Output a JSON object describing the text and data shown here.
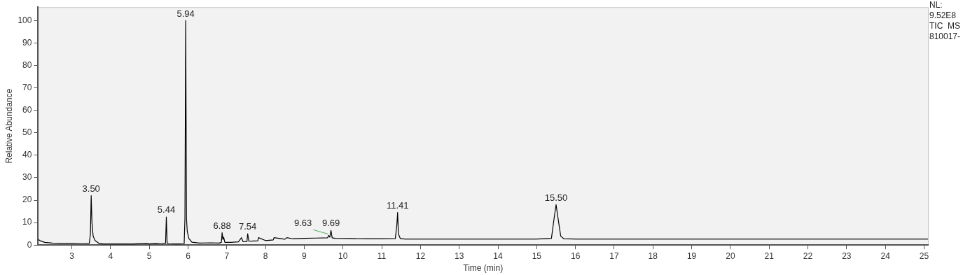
{
  "chart_data": {
    "type": "line",
    "xlabel": "Time (min)",
    "ylabel": "Relative Abundance",
    "xlim": [
      2.13,
      25.1
    ],
    "ylim": [
      0,
      106
    ],
    "xticks": [
      3,
      4,
      5,
      6,
      7,
      8,
      9,
      10,
      11,
      12,
      13,
      14,
      15,
      16,
      17,
      18,
      19,
      20,
      21,
      22,
      23,
      24,
      25
    ],
    "yticks": [
      0,
      10,
      20,
      30,
      40,
      50,
      60,
      70,
      80,
      90,
      100
    ],
    "grid": false,
    "legend": false,
    "marker": "none",
    "line_style": "solid",
    "series": [
      {
        "color": "#000000",
        "x": [
          2.13,
          2.2,
          2.3,
          2.5,
          2.7,
          3.0,
          3.3,
          3.45,
          3.48,
          3.5,
          3.52,
          3.55,
          3.6,
          3.7,
          3.8,
          4.2,
          4.6,
          4.92,
          5.0,
          5.15,
          5.3,
          5.42,
          5.44,
          5.46,
          5.5,
          5.7,
          5.9,
          5.92,
          5.94,
          5.96,
          5.98,
          6.02,
          6.1,
          6.3,
          6.58,
          6.8,
          6.86,
          6.88,
          6.9,
          6.92,
          6.95,
          7.1,
          7.3,
          7.38,
          7.42,
          7.52,
          7.54,
          7.57,
          7.7,
          7.8,
          7.82,
          8.0,
          8.2,
          8.22,
          8.5,
          8.55,
          8.7,
          9.0,
          9.3,
          9.6,
          9.63,
          9.66,
          9.69,
          9.72,
          9.8,
          10.2,
          10.6,
          11.0,
          11.35,
          11.39,
          11.41,
          11.43,
          11.48,
          11.6,
          12.0,
          12.5,
          13.0,
          13.5,
          14.0,
          14.5,
          15.0,
          15.38,
          15.45,
          15.5,
          15.55,
          15.62,
          15.7,
          16.0,
          17.0,
          18.0,
          19.0,
          20.0,
          21.0,
          22.0,
          23.0,
          24.0,
          25.1
        ],
        "values": [
          2.5,
          1.8,
          1.2,
          0.9,
          0.8,
          0.8,
          0.6,
          0.7,
          5,
          22,
          10,
          4,
          2,
          0.8,
          0.5,
          0.5,
          0.5,
          0.8,
          0.5,
          0.7,
          0.6,
          0.8,
          12.5,
          0.8,
          0.6,
          0.5,
          0.6,
          12,
          100,
          12,
          6,
          3,
          1.3,
          0.9,
          1.0,
          0.9,
          1.2,
          5.5,
          2.5,
          3.5,
          1.2,
          1.2,
          1.4,
          3.3,
          1.5,
          1.6,
          5,
          1.7,
          1.8,
          1.9,
          3.3,
          2.0,
          2.3,
          3.3,
          2.6,
          3.3,
          2.8,
          3.0,
          3.1,
          3.2,
          4.3,
          3.5,
          6.5,
          3.2,
          3.0,
          2.9,
          2.8,
          2.8,
          2.9,
          9,
          14.5,
          5,
          2.9,
          2.7,
          2.7,
          2.7,
          2.7,
          2.7,
          2.7,
          2.7,
          2.7,
          3.0,
          12,
          18,
          12,
          4,
          2.8,
          2.7,
          2.7,
          2.7,
          2.7,
          2.7,
          2.7,
          2.7,
          2.7,
          2.7,
          2.7
        ]
      }
    ],
    "annotations": [
      {
        "text": "3.50",
        "x": 3.5,
        "y": 22
      },
      {
        "text": "5.44",
        "x": 5.44,
        "y": 12.5
      },
      {
        "text": "5.94",
        "x": 5.94,
        "y": 100
      },
      {
        "text": "6.88",
        "x": 6.88,
        "y": 5.5
      },
      {
        "text": "7.54",
        "x": 7.54,
        "y": 5
      },
      {
        "text": "9.63",
        "x": 9.63,
        "y": 4.3
      },
      {
        "text": "9.69",
        "x": 9.69,
        "y": 6.5
      },
      {
        "text": "11.41",
        "x": 11.41,
        "y": 14.5
      },
      {
        "text": "15.50",
        "x": 15.5,
        "y": 18
      },
      "NL:",
      "9.52E8",
      "TIC  MS",
      "810017-"
    ]
  }
}
